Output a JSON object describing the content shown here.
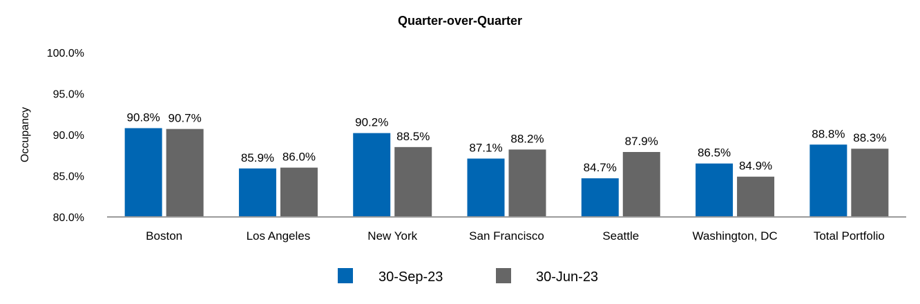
{
  "chart_data": {
    "type": "bar",
    "title": "Quarter-over-Quarter",
    "xlabel": "",
    "ylabel": "Occupancy",
    "ylim": [
      80,
      100
    ],
    "yticks": [
      "80.0%",
      "85.0%",
      "90.0%",
      "95.0%",
      "100.0%"
    ],
    "ytick_values": [
      80,
      85,
      90,
      95,
      100
    ],
    "categories": [
      "Boston",
      "Los Angeles",
      "New York",
      "San Francisco",
      "Seattle",
      "Washington, DC",
      "Total Portfolio"
    ],
    "series": [
      {
        "name": "30-Sep-23",
        "color": "#0066b3",
        "values": [
          90.8,
          85.9,
          90.2,
          87.1,
          84.7,
          86.5,
          88.8
        ],
        "labels": [
          "90.8%",
          "85.9%",
          "90.2%",
          "87.1%",
          "84.7%",
          "86.5%",
          "88.8%"
        ]
      },
      {
        "name": "30-Jun-23",
        "color": "#666666",
        "values": [
          90.7,
          86.0,
          88.5,
          88.2,
          87.9,
          84.9,
          88.3
        ],
        "labels": [
          "90.7%",
          "86.0%",
          "88.5%",
          "88.2%",
          "87.9%",
          "84.9%",
          "88.3%"
        ]
      }
    ],
    "legend_position": "bottom",
    "grid": false
  }
}
